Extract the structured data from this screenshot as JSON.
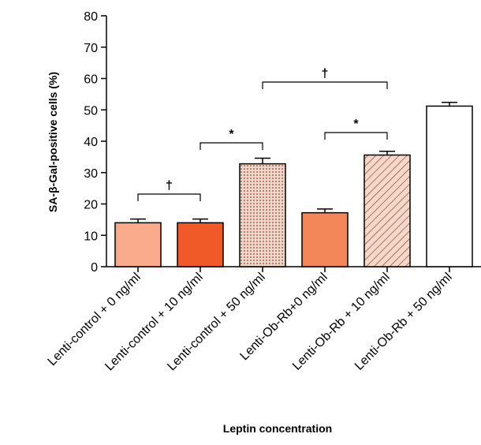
{
  "chart_data": {
    "type": "bar",
    "ylabel": "SA-β-Gal-positive cells (%)",
    "xlabel": "Leptin concentration",
    "categories": [
      "Lenti-control + 0 ng/ml",
      "Lenti-control + 10 ng/ml",
      "Lenti-control + 50 ng/ml",
      "Lenti-Ob-Rb+0 ng/ml",
      "Lenti-Ob-Rb + 10 ng/ml",
      "Lenti-Ob-Rb + 50 ng/ml"
    ],
    "values": [
      14,
      14,
      32.8,
      17.2,
      35.6,
      51.2
    ],
    "errors": [
      1.2,
      1.2,
      1.8,
      1.2,
      1.2,
      1.2
    ],
    "colors": [
      "#f9ab8c",
      "#f05a28",
      "#f7d3c3",
      "#f4875a",
      "#fbd6c6",
      "#ffffff"
    ],
    "patterns": [
      "none",
      "none",
      "dots",
      "none",
      "hatch",
      "none"
    ],
    "annotations": [
      "†",
      "*",
      "†",
      "*"
    ],
    "ylim": [
      0,
      80
    ],
    "yticks": [
      0,
      10,
      20,
      30,
      40,
      50,
      60,
      70,
      80
    ]
  }
}
